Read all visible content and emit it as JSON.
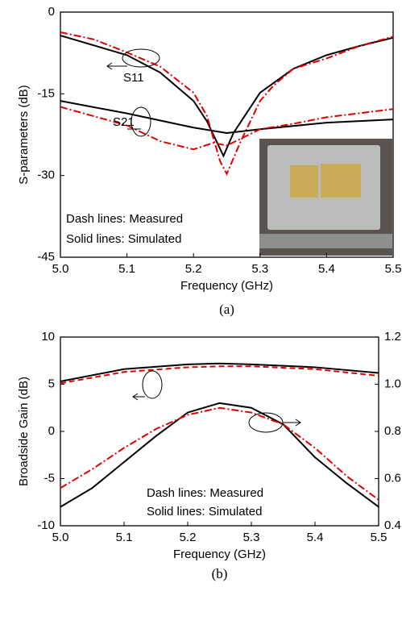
{
  "chart_data": [
    {
      "type": "line",
      "caption": "(a)",
      "x_label": "Frequency (GHz)",
      "y_label": "S-parameters (dB)",
      "xlim": [
        5.0,
        5.5
      ],
      "xticks": [
        {
          "value": 5.0,
          "label": "5.0"
        },
        5.1,
        5.2,
        5.3,
        5.4,
        5.5
      ],
      "ylim": [
        -45,
        0
      ],
      "yticks": [
        0,
        -15,
        -30,
        -45
      ],
      "annotations": [
        "Dash lines: Measured",
        "Solid lines: Simulated",
        "S11",
        "S21"
      ],
      "series": [
        {
          "color": "#000000",
          "dash": "solid",
          "x": [
            5.0,
            5.1,
            5.15,
            5.2,
            5.22,
            5.245,
            5.26,
            5.3,
            5.35,
            5.4,
            5.45,
            5.5
          ],
          "values": [
            -4.3,
            -7.9,
            -11.1,
            -16.3,
            -20,
            -26.4,
            -22.2,
            -14.8,
            -10.4,
            -7.9,
            -6.2,
            -4.7
          ]
        },
        {
          "color": "#e00000",
          "dash": "dashdot",
          "x": [
            5.0,
            5.05,
            5.1,
            5.15,
            5.2,
            5.22,
            5.24,
            5.25,
            5.27,
            5.3,
            5.32,
            5.35,
            5.4,
            5.45,
            5.5
          ],
          "values": [
            -3.7,
            -5,
            -7.4,
            -10,
            -14.8,
            -19,
            -27.4,
            -29.7,
            -24,
            -16.3,
            -13.5,
            -10.4,
            -8.5,
            -6.2,
            -4.5
          ]
        },
        {
          "color": "#000000",
          "dash": "solid",
          "x": [
            5.0,
            5.1,
            5.2,
            5.25,
            5.3,
            5.4,
            5.5
          ],
          "values": [
            -16.3,
            -18.6,
            -21.2,
            -22.2,
            -21.5,
            -20.3,
            -19.7
          ]
        },
        {
          "color": "#e00000",
          "dash": "dashdot",
          "x": [
            5.0,
            5.1,
            5.15,
            5.2,
            5.23,
            5.25,
            5.3,
            5.35,
            5.4,
            5.5
          ],
          "values": [
            -17.4,
            -20.8,
            -23.7,
            -25.2,
            -24,
            -24.5,
            -21.5,
            -20.5,
            -19.3,
            -17.8
          ]
        }
      ]
    },
    {
      "type": "line",
      "caption": "(b)",
      "x_label": "Frequency (GHz)",
      "y_label": "Broadside Gain (dB)",
      "xlim": [
        5.0,
        5.5
      ],
      "xticks": [
        {
          "value": 5.0,
          "label": "5.0"
        },
        5.1,
        5.2,
        5.3,
        5.4,
        5.5
      ],
      "ylim": [
        -10,
        10
      ],
      "yticks": [
        -10,
        -5,
        0,
        5,
        10
      ],
      "y2lim": [
        0.4,
        1.2
      ],
      "y2ticks": [
        0.4,
        0.6,
        0.8,
        {
          "value": 1.0,
          "label": "1.0"
        },
        1.2
      ],
      "annotations": [
        "Dash lines: Measured",
        "Solid lines: Simulated"
      ],
      "series": [
        {
          "color": "#000000",
          "dash": "solid",
          "x": [
            5.0,
            5.1,
            5.2,
            5.25,
            5.3,
            5.4,
            5.5
          ],
          "values": [
            5.3,
            6.6,
            7.1,
            7.2,
            7.1,
            6.8,
            6.2
          ]
        },
        {
          "color": "#e00000",
          "dash": "dashed",
          "x": [
            5.0,
            5.1,
            5.2,
            5.25,
            5.3,
            5.4,
            5.5
          ],
          "values": [
            5.1,
            6.3,
            6.8,
            6.9,
            6.9,
            6.6,
            5.9
          ]
        },
        {
          "color": "#000000",
          "dash": "solid",
          "axis": "y2",
          "x": [
            5.0,
            5.05,
            5.1,
            5.15,
            5.2,
            5.25,
            5.3,
            5.35,
            5.4,
            5.45,
            5.5
          ],
          "values": [
            0.48,
            0.56,
            0.67,
            0.78,
            0.88,
            0.92,
            0.9,
            0.83,
            0.69,
            0.58,
            0.48
          ]
        },
        {
          "color": "#e00000",
          "dash": "dashdot",
          "axis": "y2",
          "x": [
            5.0,
            5.05,
            5.1,
            5.15,
            5.2,
            5.25,
            5.3,
            5.35,
            5.4,
            5.45,
            5.5
          ],
          "values": [
            0.56,
            0.64,
            0.73,
            0.81,
            0.87,
            0.9,
            0.88,
            0.83,
            0.73,
            0.61,
            0.51
          ]
        }
      ]
    }
  ]
}
